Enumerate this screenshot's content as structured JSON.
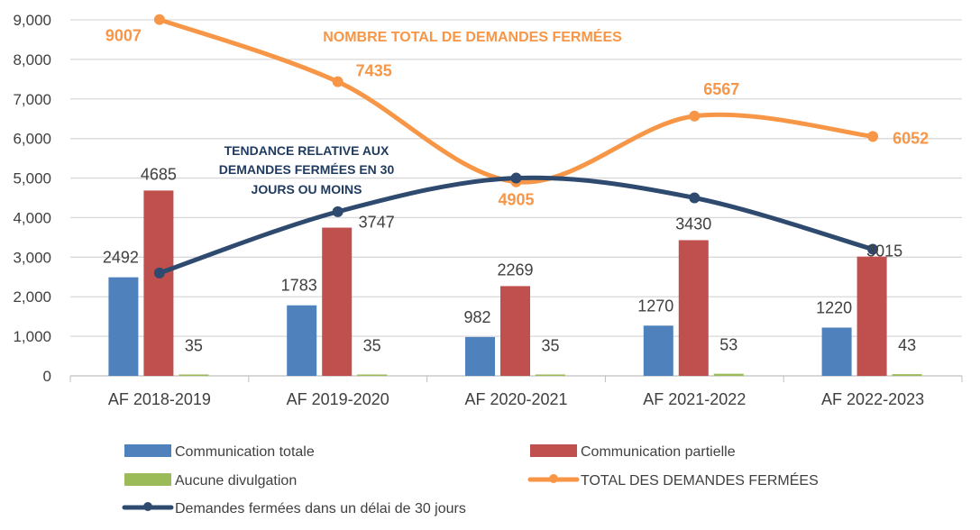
{
  "chart_data": {
    "type": "bar+line",
    "categories": [
      "AF 2018-2019",
      "AF 2019-2020",
      "AF 2020-2021",
      "AF 2021-2022",
      "AF 2022-2023"
    ],
    "ylim": [
      0,
      9000
    ],
    "yticks": [
      "0",
      "1,000",
      "2,000",
      "3,000",
      "4,000",
      "5,000",
      "6,000",
      "7,000",
      "8,000",
      "9,000"
    ],
    "grid": true,
    "legend_position": "bottom",
    "series": [
      {
        "name": "Communication totale",
        "type": "bar",
        "color": "#4F81BD",
        "values": [
          2492,
          1783,
          982,
          1270,
          1220
        ],
        "labels": [
          "2492",
          "1783",
          "982",
          "1270",
          "1220"
        ]
      },
      {
        "name": "Communication partielle",
        "type": "bar",
        "color": "#C0504D",
        "values": [
          4685,
          3747,
          2269,
          3430,
          3015
        ],
        "labels": [
          "4685",
          "3747",
          "2269",
          "3430",
          "3015"
        ]
      },
      {
        "name": "Aucune divulgation",
        "type": "bar",
        "color": "#9BBB59",
        "values": [
          35,
          35,
          35,
          53,
          43
        ],
        "labels": [
          "35",
          "35",
          "35",
          "53",
          "43"
        ]
      },
      {
        "name": "TOTAL DES DEMANDES FERMÉES",
        "type": "line",
        "color": "#F79646",
        "values": [
          9007,
          7435,
          4905,
          6567,
          6052
        ],
        "labels": [
          "9007",
          "7435",
          "4905",
          "6567",
          "6052"
        ]
      },
      {
        "name": "Demandes fermées dans un délai de 30 jours",
        "type": "line",
        "color": "#2E4A6F",
        "values": [
          2600,
          4150,
          5000,
          4500,
          3200
        ]
      }
    ],
    "annotations": {
      "total": "NOMBRE TOTAL DE DEMANDES FERMÉES",
      "trend_lines": [
        "TENDANCE RELATIVE AUX",
        "DEMANDES FERMÉES EN 30",
        "JOURS OU MOINS"
      ]
    }
  }
}
